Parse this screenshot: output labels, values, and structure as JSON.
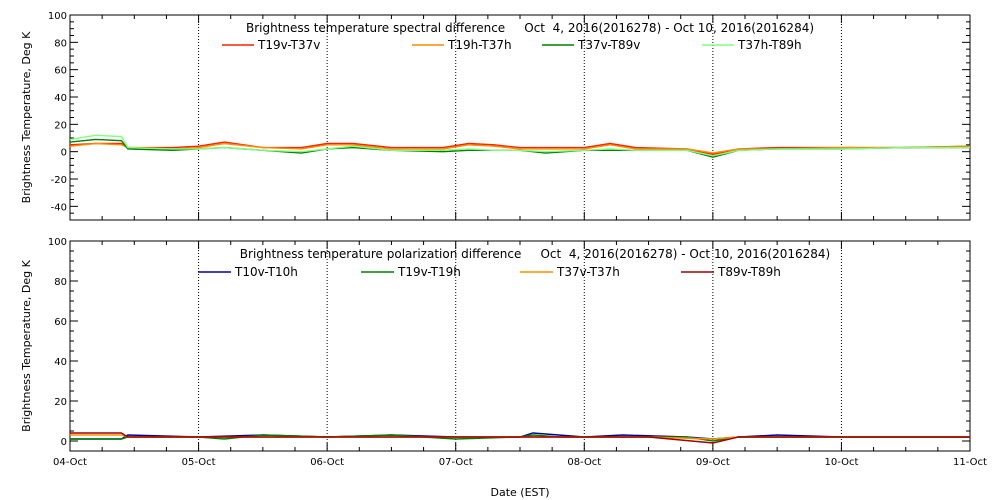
{
  "colors": {
    "frame": "#000000",
    "grid": "#000000",
    "background": "#ffffff"
  },
  "chart_data": [
    {
      "type": "line",
      "title": "Brightness temperature spectral difference     Oct  4, 2016(2016278) - Oct 10, 2016(2016284)",
      "xlabel": "",
      "ylabel": "Brightness Temperature, Deg K",
      "x_ticks": [
        0,
        1,
        2,
        3,
        4,
        5,
        6,
        7
      ],
      "x_tick_labels": [
        "",
        "",
        "",
        "",
        "",
        "",
        "",
        ""
      ],
      "xlim": [
        0,
        7
      ],
      "ylim": [
        -50,
        100
      ],
      "y_ticks": [
        -40,
        -20,
        0,
        20,
        40,
        60,
        80,
        100
      ],
      "y_tick_labels": [
        "-40",
        "-20",
        "0",
        "20",
        "40",
        "60",
        "80",
        "100"
      ],
      "grid": "dotted vertical at day boundaries",
      "legend_position": "top, two rows under title",
      "series": [
        {
          "name": "T19v-T37v",
          "color": "#ff2000",
          "points": [
            [
              0,
              5
            ],
            [
              0.2,
              6
            ],
            [
              0.4,
              6
            ],
            [
              0.45,
              3
            ],
            [
              0.8,
              3
            ],
            [
              1,
              4
            ],
            [
              1.2,
              7
            ],
            [
              1.5,
              3
            ],
            [
              1.8,
              3
            ],
            [
              2,
              6
            ],
            [
              2.2,
              6
            ],
            [
              2.5,
              3
            ],
            [
              2.9,
              3
            ],
            [
              3.1,
              6
            ],
            [
              3.3,
              5
            ],
            [
              3.5,
              3
            ],
            [
              4,
              3
            ],
            [
              4.2,
              6
            ],
            [
              4.4,
              3
            ],
            [
              4.8,
              2
            ],
            [
              5,
              -2
            ],
            [
              5.2,
              2
            ],
            [
              5.5,
              3
            ],
            [
              6,
              3
            ],
            [
              6.5,
              3
            ],
            [
              7,
              4
            ]
          ]
        },
        {
          "name": "T19h-T37h",
          "color": "#ff8c00",
          "points": [
            [
              0,
              4
            ],
            [
              0.2,
              6
            ],
            [
              0.4,
              5
            ],
            [
              0.45,
              3
            ],
            [
              0.8,
              2
            ],
            [
              1,
              3
            ],
            [
              1.2,
              6
            ],
            [
              1.5,
              3
            ],
            [
              1.8,
              2
            ],
            [
              2,
              5
            ],
            [
              2.2,
              5
            ],
            [
              2.5,
              2
            ],
            [
              2.9,
              2
            ],
            [
              3.1,
              5
            ],
            [
              3.3,
              4
            ],
            [
              3.5,
              2
            ],
            [
              4,
              2
            ],
            [
              4.2,
              5
            ],
            [
              4.4,
              2
            ],
            [
              4.8,
              2
            ],
            [
              5,
              -1
            ],
            [
              5.2,
              2
            ],
            [
              5.5,
              2
            ],
            [
              6,
              3
            ],
            [
              6.5,
              3
            ],
            [
              7,
              4
            ]
          ]
        },
        {
          "name": "T37v-T89v",
          "color": "#008000",
          "points": [
            [
              0,
              7
            ],
            [
              0.2,
              9
            ],
            [
              0.4,
              8
            ],
            [
              0.45,
              2
            ],
            [
              0.8,
              1
            ],
            [
              1,
              2
            ],
            [
              1.2,
              3
            ],
            [
              1.5,
              1
            ],
            [
              1.8,
              -1
            ],
            [
              2,
              2
            ],
            [
              2.2,
              3
            ],
            [
              2.5,
              1
            ],
            [
              2.9,
              0
            ],
            [
              3.1,
              1
            ],
            [
              3.3,
              1
            ],
            [
              3.5,
              1
            ],
            [
              3.7,
              -1
            ],
            [
              4,
              1
            ],
            [
              4.2,
              1
            ],
            [
              4.4,
              1
            ],
            [
              4.8,
              1
            ],
            [
              5,
              -4
            ],
            [
              5.2,
              1
            ],
            [
              5.5,
              2
            ],
            [
              6,
              2
            ],
            [
              6.5,
              3
            ],
            [
              7,
              3
            ]
          ]
        },
        {
          "name": "T37h-T89h",
          "color": "#80ff80",
          "points": [
            [
              0,
              9
            ],
            [
              0.2,
              12
            ],
            [
              0.4,
              11
            ],
            [
              0.45,
              3
            ],
            [
              0.8,
              2
            ],
            [
              1,
              2
            ],
            [
              1.2,
              3
            ],
            [
              1.5,
              1
            ],
            [
              1.8,
              0
            ],
            [
              2,
              2
            ],
            [
              2.2,
              4
            ],
            [
              2.5,
              1
            ],
            [
              2.9,
              1
            ],
            [
              3.1,
              2
            ],
            [
              3.3,
              1
            ],
            [
              3.5,
              1
            ],
            [
              3.7,
              0
            ],
            [
              4,
              1
            ],
            [
              4.2,
              2
            ],
            [
              4.4,
              1
            ],
            [
              4.8,
              1
            ],
            [
              5,
              -3
            ],
            [
              5.2,
              1
            ],
            [
              5.5,
              2
            ],
            [
              6,
              2
            ],
            [
              6.5,
              3
            ],
            [
              7,
              3
            ]
          ]
        }
      ]
    },
    {
      "type": "line",
      "title": "Brightness temperature polarization difference     Oct  4, 2016(2016278) - Oct 10, 2016(2016284)",
      "xlabel": "Date (EST)",
      "ylabel": "Brightness Temperature, Deg K",
      "x_ticks": [
        0,
        1,
        2,
        3,
        4,
        5,
        6,
        7
      ],
      "x_tick_labels": [
        "04-Oct",
        "05-Oct",
        "06-Oct",
        "07-Oct",
        "08-Oct",
        "09-Oct",
        "10-Oct",
        "11-Oct"
      ],
      "xlim": [
        0,
        7
      ],
      "ylim": [
        -5,
        100
      ],
      "y_ticks": [
        0,
        20,
        40,
        60,
        80,
        100
      ],
      "y_tick_labels": [
        "0",
        "20",
        "40",
        "60",
        "80",
        "100"
      ],
      "grid": "dotted vertical at day boundaries",
      "legend_position": "top, one row under title",
      "series": [
        {
          "name": "T10v-T10h",
          "color": "#0000a0",
          "points": [
            [
              0,
              1
            ],
            [
              0.4,
              1
            ],
            [
              0.45,
              3
            ],
            [
              1,
              2
            ],
            [
              1.5,
              3
            ],
            [
              2,
              2
            ],
            [
              2.5,
              3
            ],
            [
              3,
              2
            ],
            [
              3.5,
              2
            ],
            [
              3.6,
              4
            ],
            [
              3.8,
              3
            ],
            [
              4,
              2
            ],
            [
              4.3,
              3
            ],
            [
              4.8,
              2
            ],
            [
              5,
              1
            ],
            [
              5.2,
              2
            ],
            [
              5.5,
              3
            ],
            [
              6,
              2
            ],
            [
              6.5,
              2
            ],
            [
              7,
              2
            ]
          ]
        },
        {
          "name": "T19v-T19h",
          "color": "#008000",
          "points": [
            [
              0,
              1
            ],
            [
              0.4,
              1
            ],
            [
              0.45,
              2
            ],
            [
              1,
              2
            ],
            [
              1.2,
              1
            ],
            [
              1.5,
              3
            ],
            [
              2,
              2
            ],
            [
              2.5,
              3
            ],
            [
              3,
              1
            ],
            [
              3.5,
              2
            ],
            [
              3.6,
              3
            ],
            [
              3.8,
              2
            ],
            [
              4,
              2
            ],
            [
              4.3,
              2
            ],
            [
              4.8,
              2
            ],
            [
              5,
              0
            ],
            [
              5.2,
              2
            ],
            [
              5.5,
              2
            ],
            [
              6,
              2
            ],
            [
              6.5,
              2
            ],
            [
              7,
              2
            ]
          ]
        },
        {
          "name": "T37v-T37h",
          "color": "#ff8c00",
          "points": [
            [
              0,
              3
            ],
            [
              0.4,
              3
            ],
            [
              0.45,
              2
            ],
            [
              1,
              2
            ],
            [
              1.5,
              2
            ],
            [
              2,
              2
            ],
            [
              2.5,
              2
            ],
            [
              3,
              2
            ],
            [
              3.5,
              2
            ],
            [
              4,
              2
            ],
            [
              4.5,
              2
            ],
            [
              5,
              1
            ],
            [
              5.2,
              2
            ],
            [
              5.5,
              2
            ],
            [
              6,
              2
            ],
            [
              6.5,
              2
            ],
            [
              7,
              2
            ]
          ]
        },
        {
          "name": "T89v-T89h",
          "color": "#a00000",
          "points": [
            [
              0,
              4
            ],
            [
              0.4,
              4
            ],
            [
              0.45,
              2
            ],
            [
              1,
              2
            ],
            [
              1.5,
              2
            ],
            [
              2,
              2
            ],
            [
              2.5,
              2
            ],
            [
              3,
              2
            ],
            [
              3.5,
              2
            ],
            [
              4,
              2
            ],
            [
              4.5,
              2
            ],
            [
              5,
              -1
            ],
            [
              5.2,
              2
            ],
            [
              5.5,
              2
            ],
            [
              6,
              2
            ],
            [
              6.5,
              2
            ],
            [
              7,
              2
            ]
          ]
        }
      ]
    }
  ]
}
